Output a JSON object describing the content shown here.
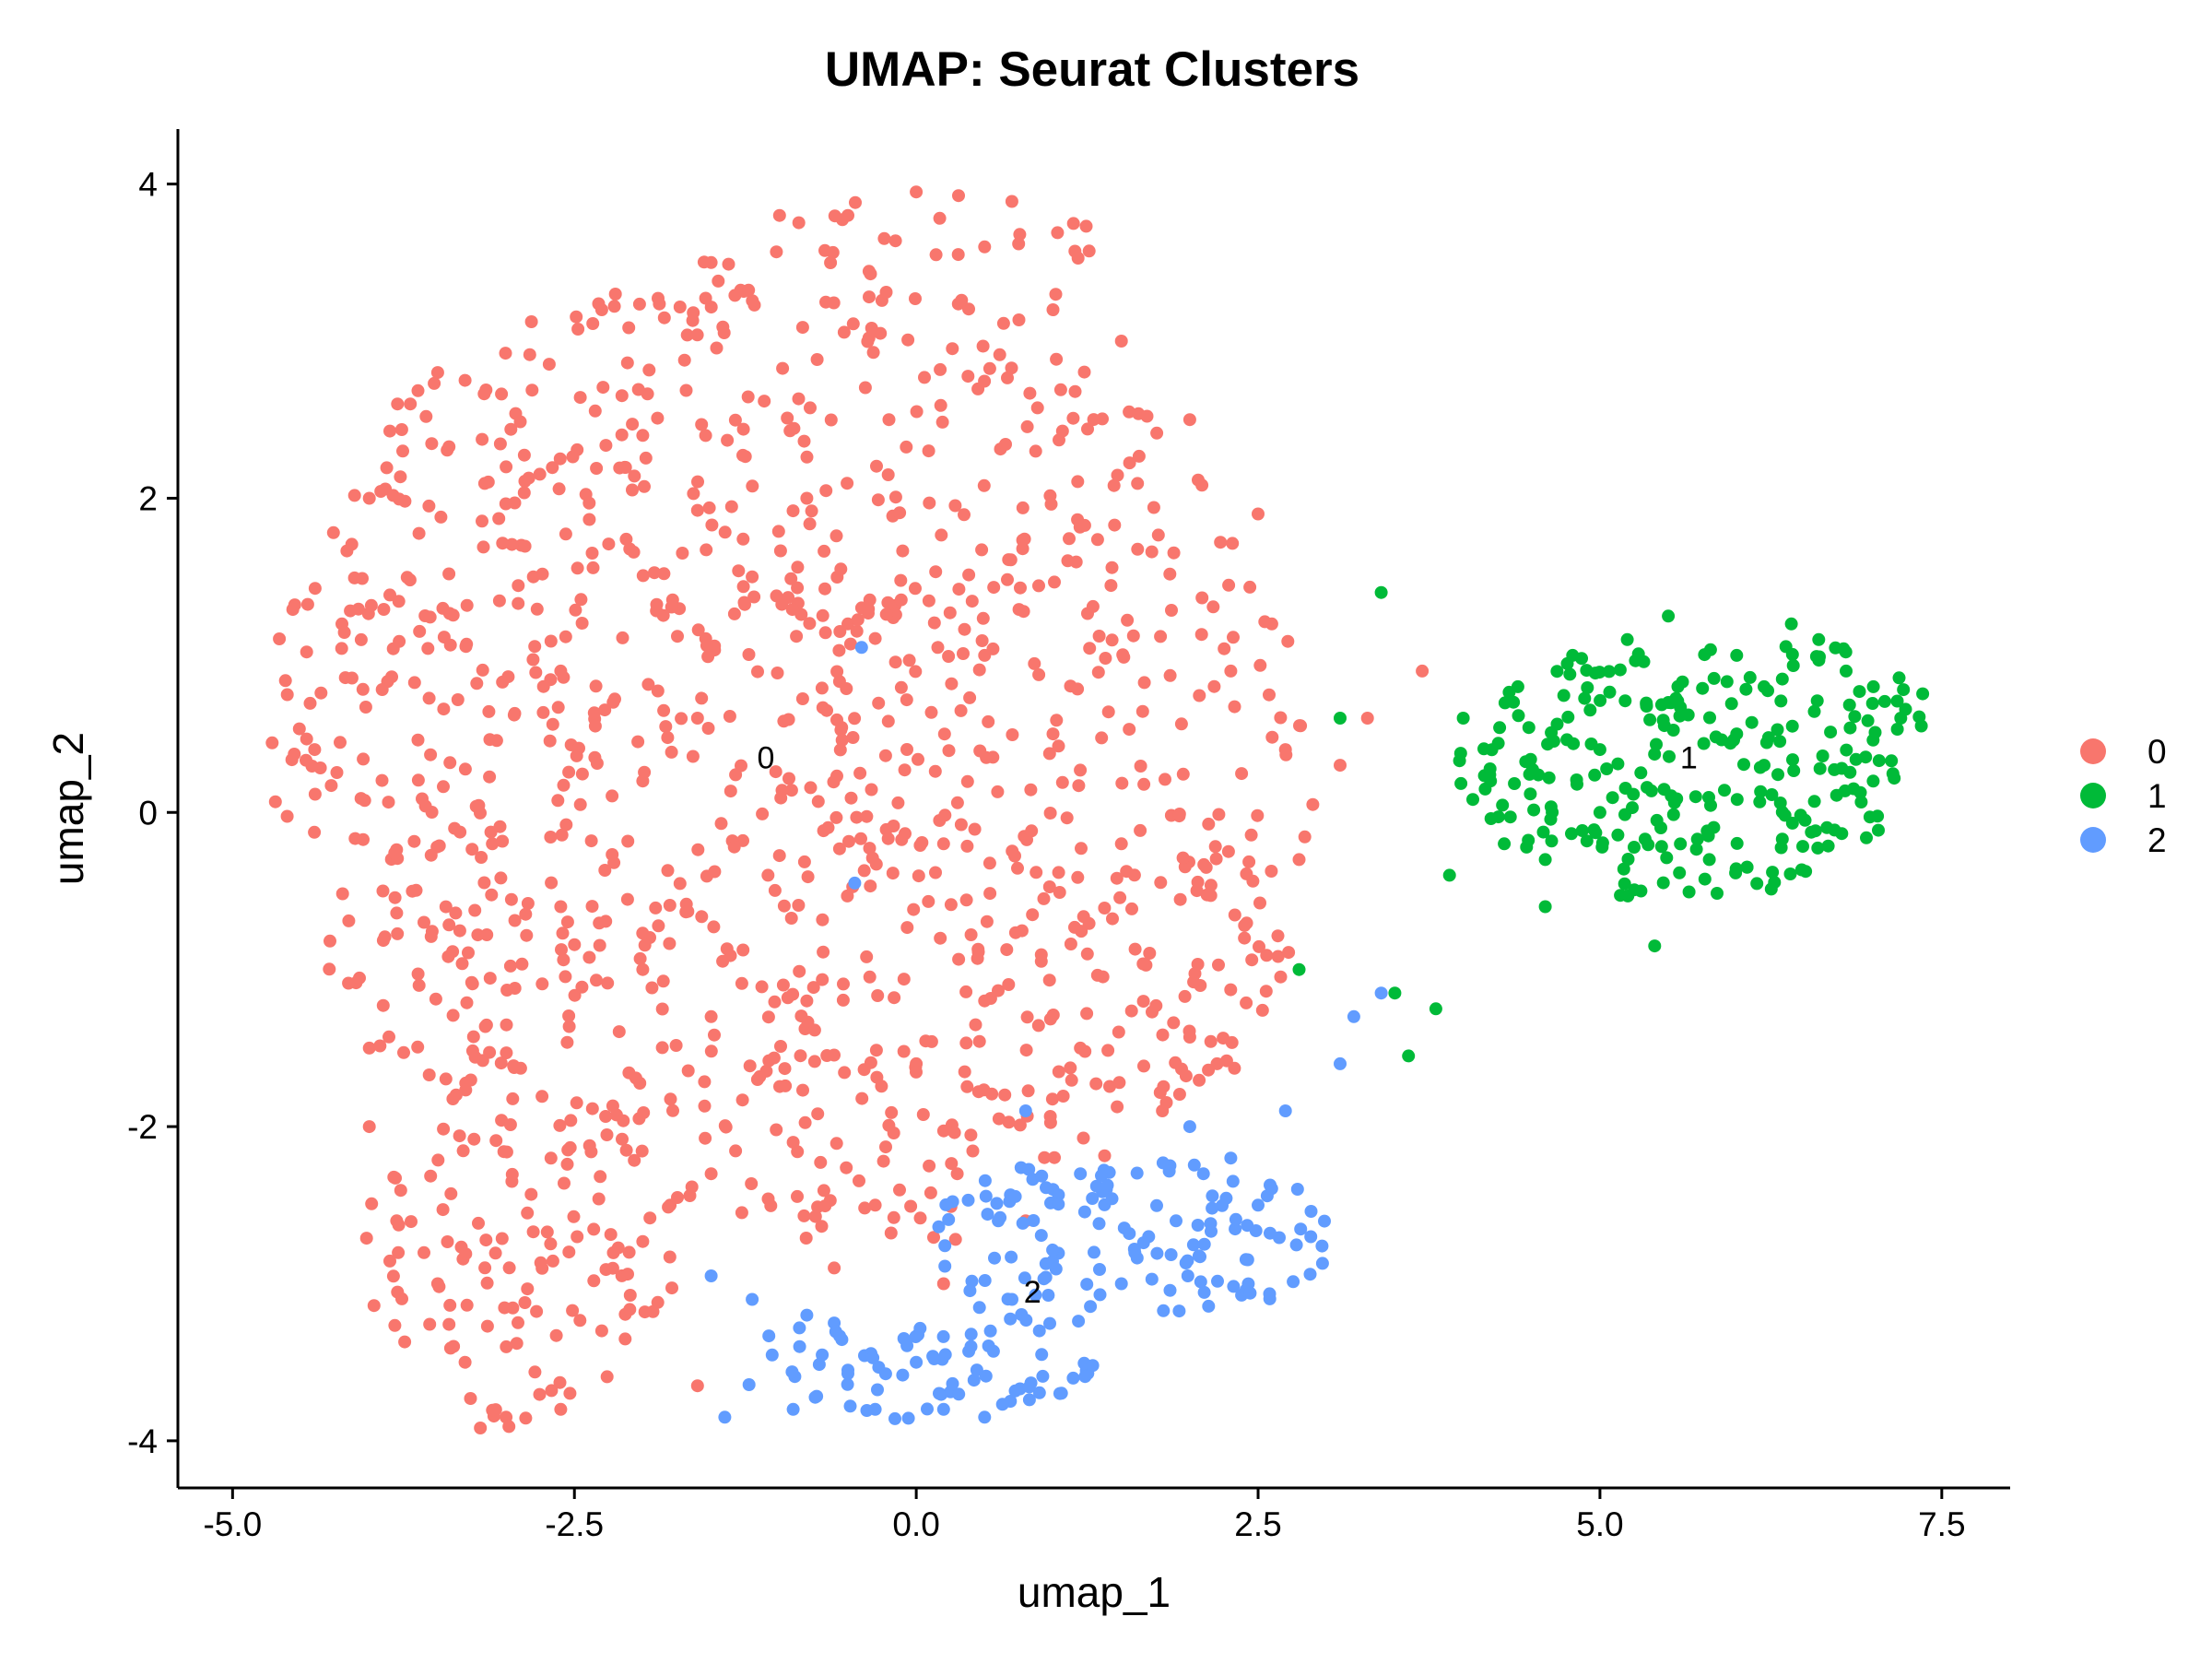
{
  "chart_data": {
    "type": "scatter",
    "title": "UMAP: Seurat Clusters",
    "xlabel": "umap_1",
    "ylabel": "umap_2",
    "xlim": [
      -5.4,
      8.0
    ],
    "ylim": [
      -4.3,
      4.35
    ],
    "xticks": [
      {
        "value": -5.0,
        "label": "-5.0"
      },
      {
        "value": -2.5,
        "label": "-2.5"
      },
      {
        "value": 0.0,
        "label": "0.0"
      },
      {
        "value": 2.5,
        "label": "2.5"
      },
      {
        "value": 5.0,
        "label": "5.0"
      },
      {
        "value": 7.5,
        "label": "7.5"
      }
    ],
    "yticks": [
      {
        "value": 4,
        "label": "4"
      },
      {
        "value": 2,
        "label": "2"
      },
      {
        "value": 0,
        "label": "0"
      },
      {
        "value": -2,
        "label": "-2"
      },
      {
        "value": -4,
        "label": "-4"
      }
    ],
    "grid": false,
    "legend_position": "right",
    "series": [
      {
        "name": "0",
        "color": "#F8766D",
        "center_label": "0",
        "center": [
          -1.1,
          0.35
        ],
        "approx_count": 1300,
        "sample_points": [
          [
            -4.6,
            0.75
          ],
          [
            -4.4,
            0.4
          ],
          [
            -4.2,
            1.2
          ],
          [
            -4.0,
            2.0
          ],
          [
            -3.9,
            -0.5
          ],
          [
            -3.7,
            2.6
          ],
          [
            -3.5,
            2.8
          ],
          [
            -3.3,
            2.75
          ],
          [
            -3.0,
            2.2
          ],
          [
            -2.8,
            1.5
          ],
          [
            -2.6,
            0.9
          ],
          [
            -2.3,
            3.2
          ],
          [
            -2.0,
            2.4
          ],
          [
            -1.5,
            3.5
          ],
          [
            -1.0,
            3.8
          ],
          [
            -0.5,
            3.8
          ],
          [
            0.0,
            3.95
          ],
          [
            0.5,
            3.6
          ],
          [
            1.0,
            3.2
          ],
          [
            1.5,
            3.0
          ],
          [
            2.0,
            2.5
          ],
          [
            2.5,
            1.9
          ],
          [
            2.6,
            1.2
          ],
          [
            2.7,
            0.4
          ],
          [
            2.8,
            -0.3
          ],
          [
            2.4,
            -0.8
          ],
          [
            2.2,
            -1.6
          ],
          [
            1.8,
            -1.9
          ],
          [
            1.2,
            -1.5
          ],
          [
            0.5,
            -1.2
          ],
          [
            0.0,
            -1.6
          ],
          [
            -0.8,
            -1.2
          ],
          [
            -1.5,
            -1.3
          ],
          [
            -2.0,
            -1.0
          ],
          [
            -2.6,
            -0.6
          ],
          [
            -3.1,
            -0.2
          ],
          [
            -3.6,
            -0.7
          ],
          [
            -4.0,
            -1.5
          ],
          [
            -4.0,
            -2.0
          ],
          [
            -3.8,
            -2.6
          ],
          [
            -3.5,
            -3.0
          ],
          [
            -3.3,
            -3.5
          ],
          [
            -3.0,
            -3.85
          ],
          [
            -2.6,
            -3.8
          ],
          [
            -2.3,
            -3.3
          ],
          [
            -2.1,
            -2.8
          ],
          [
            -1.8,
            -2.5
          ],
          [
            -1.6,
            -3.65
          ],
          [
            -1.5,
            -2.3
          ],
          [
            -0.9,
            -2.1
          ],
          [
            -0.6,
            -2.9
          ],
          [
            -0.3,
            -2.5
          ],
          [
            0.3,
            -2.3
          ],
          [
            0.8,
            -2.6
          ],
          [
            0.2,
            -3.0
          ],
          [
            -0.5,
            1.2
          ],
          [
            -1.2,
            1.5
          ],
          [
            0.5,
            1.0
          ],
          [
            1.0,
            0.5
          ],
          [
            1.5,
            -0.2
          ],
          [
            -2.0,
            0.2
          ],
          [
            -1.6,
            0.6
          ],
          [
            0.2,
            -0.2
          ],
          [
            -0.2,
            2.5
          ],
          [
            -0.8,
            2.0
          ],
          [
            3.1,
            0.3
          ],
          [
            3.3,
            0.6
          ],
          [
            3.7,
            0.9
          ],
          [
            2.9,
            0.05
          ],
          [
            2.3,
            0.9
          ]
        ]
      },
      {
        "name": "1",
        "color": "#00BA38",
        "center_label": "1",
        "center": [
          5.65,
          0.35
        ],
        "approx_count": 280,
        "sample_points": [
          [
            4.0,
            0.6
          ],
          [
            4.2,
            0.2
          ],
          [
            4.3,
            -0.2
          ],
          [
            4.4,
            0.8
          ],
          [
            4.6,
            -0.3
          ],
          [
            4.8,
            1.0
          ],
          [
            5.0,
            0.4
          ],
          [
            5.2,
            1.1
          ],
          [
            5.3,
            -0.5
          ],
          [
            5.5,
            1.25
          ],
          [
            5.7,
            0.1
          ],
          [
            5.8,
            -0.3
          ],
          [
            6.0,
            1.0
          ],
          [
            6.2,
            0.8
          ],
          [
            6.4,
            1.2
          ],
          [
            6.6,
            1.1
          ],
          [
            6.8,
            0.9
          ],
          [
            7.0,
            0.8
          ],
          [
            7.2,
            0.6
          ],
          [
            7.35,
            0.55
          ],
          [
            6.2,
            0.3
          ],
          [
            6.5,
            -0.05
          ],
          [
            5.4,
            -0.85
          ],
          [
            4.6,
            -0.6
          ],
          [
            3.9,
            -0.4
          ],
          [
            3.8,
            -1.25
          ],
          [
            3.6,
            -1.55
          ],
          [
            3.5,
            -1.15
          ],
          [
            3.4,
            1.4
          ],
          [
            3.1,
            0.6
          ],
          [
            2.8,
            -1.0
          ],
          [
            5.0,
            0.0
          ],
          [
            6.0,
            0.5
          ],
          [
            5.5,
            0.7
          ]
        ]
      },
      {
        "name": "2",
        "color": "#619CFF",
        "center_label": "2",
        "center": [
          0.85,
          -3.05
        ],
        "approx_count": 230,
        "sample_points": [
          [
            -1.4,
            -3.85
          ],
          [
            -1.2,
            -3.1
          ],
          [
            -0.9,
            -3.8
          ],
          [
            -0.8,
            -3.2
          ],
          [
            -0.5,
            -3.55
          ],
          [
            -0.3,
            -3.8
          ],
          [
            0.0,
            -3.5
          ],
          [
            0.2,
            -3.8
          ],
          [
            0.4,
            -3.4
          ],
          [
            0.5,
            -3.85
          ],
          [
            0.7,
            -3.1
          ],
          [
            0.9,
            -3.3
          ],
          [
            1.0,
            -2.4
          ],
          [
            1.2,
            -2.3
          ],
          [
            1.3,
            -2.8
          ],
          [
            1.5,
            -3.0
          ],
          [
            1.7,
            -2.7
          ],
          [
            1.9,
            -2.6
          ],
          [
            2.1,
            -2.3
          ],
          [
            2.3,
            -2.2
          ],
          [
            2.5,
            -2.5
          ],
          [
            2.7,
            -1.9
          ],
          [
            0.8,
            -1.9
          ],
          [
            0.6,
            -2.6
          ],
          [
            2.0,
            -2.0
          ],
          [
            3.1,
            -1.6
          ],
          [
            3.2,
            -1.3
          ],
          [
            3.4,
            -1.15
          ],
          [
            -0.4,
            1.05
          ],
          [
            -0.45,
            -0.45
          ],
          [
            -1.5,
            -2.95
          ],
          [
            -0.6,
            -3.25
          ]
        ]
      }
    ]
  }
}
